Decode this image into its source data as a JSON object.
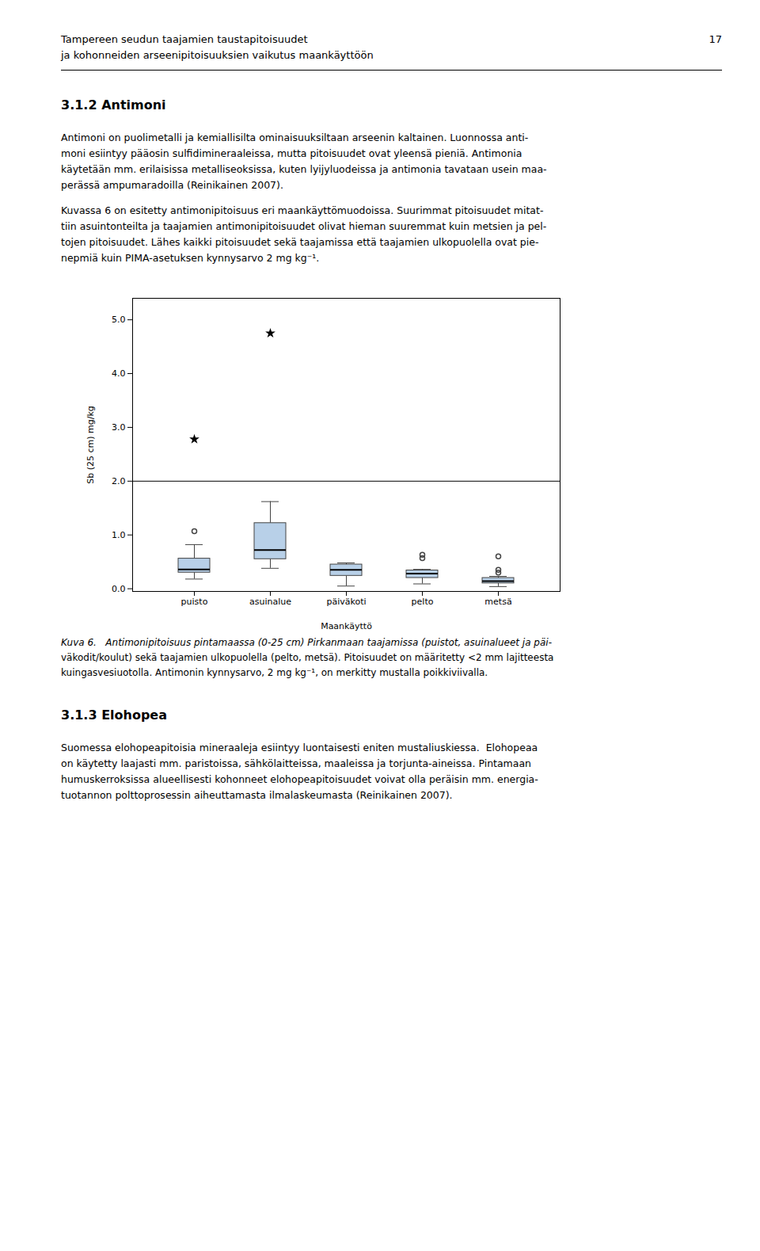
{
  "chart_data": {
    "type": "box",
    "categories": [
      "puisto",
      "asuinalue",
      "päiväkoti",
      "pelto",
      "metsä"
    ],
    "xlabel": "Maankäyttö",
    "ylabel": "Sb (25 cm) mg/kg",
    "ylim": [
      -0.05,
      5.4
    ],
    "yticks": [
      0,
      1,
      2,
      3,
      4,
      5
    ],
    "color": "#b8d0e8",
    "reference_line": 2.0,
    "boxes": [
      {
        "q1": 0.3,
        "median": 0.36,
        "q3": 0.56,
        "whisker_low": 0.18,
        "whisker_high": 0.82,
        "circle_outliers": [
          1.07
        ],
        "star_outliers": [
          2.78
        ]
      },
      {
        "q1": 0.55,
        "median": 0.72,
        "q3": 1.22,
        "whisker_low": 0.38,
        "whisker_high": 1.62,
        "circle_outliers": [],
        "star_outliers": [
          4.75
        ]
      },
      {
        "q1": 0.24,
        "median": 0.35,
        "q3": 0.45,
        "whisker_low": 0.05,
        "whisker_high": 0.48,
        "circle_outliers": [],
        "star_outliers": []
      },
      {
        "q1": 0.2,
        "median": 0.28,
        "q3": 0.34,
        "whisker_low": 0.09,
        "whisker_high": 0.36,
        "circle_outliers": [
          0.57,
          0.63
        ],
        "star_outliers": []
      },
      {
        "q1": 0.1,
        "median": 0.14,
        "q3": 0.2,
        "whisker_low": 0.04,
        "whisker_high": 0.23,
        "circle_outliers": [
          0.3,
          0.35,
          0.6
        ],
        "star_outliers": []
      }
    ]
  },
  "page": {
    "header_text_1": "Tampereen seudun taajamien taustapitoisuudet",
    "header_text_2": "ja kohonneiden arseenipitoisuuksien vaikutus maankäyttöön",
    "header_page_num": "17",
    "section_title": "3.1.2   Antimoni",
    "para1": "Antimoni on puolimetalli ja kemiallisilta ominaisuuksiltaan arseenin kaltainen. Luonnossa anti-\nmoni esiintyy pääosin sulfidimineraaleissa, mutta pitoisuudet ovat yleensä pieniä. Antimonia\nkäytetään mm. erilaisissa metalliseoksissa, kuten lyijyluodeissa ja antimonia tavataan usein maa-\nperässä ampumaradoilla (Reinikainen 2007).",
    "para2": "Kuvassa 6 on esitetty antimonipitoisuus eri maankäyttömuodoissa. Suurimmat pitoisuudet mitat-\ntiin asuintonteilta ja taajamien antimonipitoisuudet olivat hieman suuremmat kuin metsien ja pel-\ntojen pitoisuudet. Lähes kaikki pitoisuudet sekä taajamissa että taajamien ulkopuolella ovat pie-\nnepmiä kuin PIMA-asetuksen kynnysarvo 2 mg kg⁻¹.",
    "caption": "Kuva 6.   Antimonipitoisuus pintamaassa (0-25 cm) Pirkanmaan taajamissa (puistot, asuinalueet ja päi-\nväkodit/koulut) sekä taajamien ulkopuolella (pelto, metsä). Pitoisuudet on määritetty <2 mm lajitteesta\nkuingasvesiuotolla. Antimonin kynnysarvo, 2 mg kg⁻¹, on merkitty mustalla poikkiviivalla.",
    "section2_title": "3.1.3   Elohopea",
    "para3": "Suomessa elohopeapitoisia mineraaleja esiintyy luontaisesti eniten mustaliuskiessa.  Elohopeaa\non käytetty laajasti mm. paristoissa, sähkölaitteissa, maaleissa ja torjunta-aineissa. Pintamaan\nhumuskerroksissa alueellisesti kohonneet elohopeapitoisuudet voivat olla peräisin mm. energia-\ntuotannon polttoprosessin aiheuttamasta ilmalaskeumasta (Reinikainen 2007)."
  }
}
